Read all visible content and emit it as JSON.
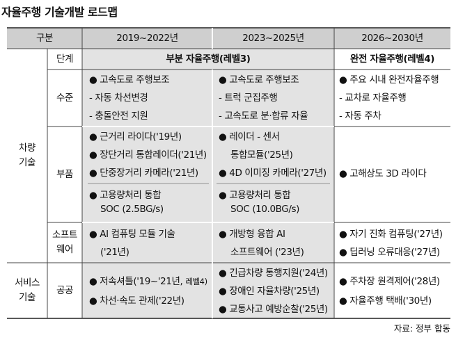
{
  "title": "자율주행 기술개발 로드맵",
  "source": "자료: 정부 합동",
  "header": {
    "category": "구분",
    "period1": "2019~2022년",
    "period2": "2023~2025년",
    "period3": "2026~2030년"
  },
  "vehicle": {
    "group": [
      "차량",
      "기술"
    ],
    "stage_label": "단계",
    "stage": {
      "p1p2": "부분 자율주행(레벨3)",
      "p3": "완전 자율주행(레벨4)"
    },
    "level": {
      "label": "수준",
      "p1": [
        "● 고속도로 주행보조",
        "- 자동 차선변경",
        "- 충돌안전 지원"
      ],
      "p2": [
        "● 고속도로 주행보조",
        "- 트럭 군집주행",
        "- 고속도로 분·합류 자율"
      ],
      "p3": [
        "● 주요 시내 완전자율주행",
        "- 교차로 자율주행",
        "- 자동 주차"
      ]
    },
    "parts": {
      "label": "부품",
      "p1a": [
        "● 근거리 라이다('19년)",
        "● 장단거리 통합레이더('21년)",
        "● 단중장거리 카메라('21년)"
      ],
      "p1b": [
        "● 고용량처리 통합",
        "SOC (2.5BG/s)"
      ],
      "p2a": [
        "● 레이더 - 센서",
        "통합모듈('25년)",
        "● 4D 이미징 카메라('27년)"
      ],
      "p2b": [
        "● 고용량처리 통합",
        "SOC (10.0BG/s)"
      ],
      "p3": "● 고해상도 3D 라이다"
    },
    "software": {
      "label": [
        "소프트",
        "웨어"
      ],
      "p1": [
        "● AI 컴퓨팅 모듈 기술",
        "('21년)"
      ],
      "p2": [
        "● 개방형 융합 AI",
        "소프트웨어 ('23년)"
      ],
      "p3": [
        "● 자기 진화 컴퓨팅('27년)",
        "● 딥러닝 오류대응('27년)"
      ]
    }
  },
  "service": {
    "group": [
      "서비스",
      "기술"
    ],
    "public": {
      "label": "공공",
      "p1": [
        "● 저속셔틀('19~'21년, 레벨4)",
        "● 차선·속도 관제('22년)"
      ],
      "p2": [
        "● 긴급차량 통행지원('24년)",
        "● 장애인 자율차량('25년)",
        "● 교통사고 예방순찰('25년)"
      ],
      "p3": [
        "● 주차장 원격제어('28년)",
        "● 자율주행 택배('30년)"
      ]
    }
  }
}
